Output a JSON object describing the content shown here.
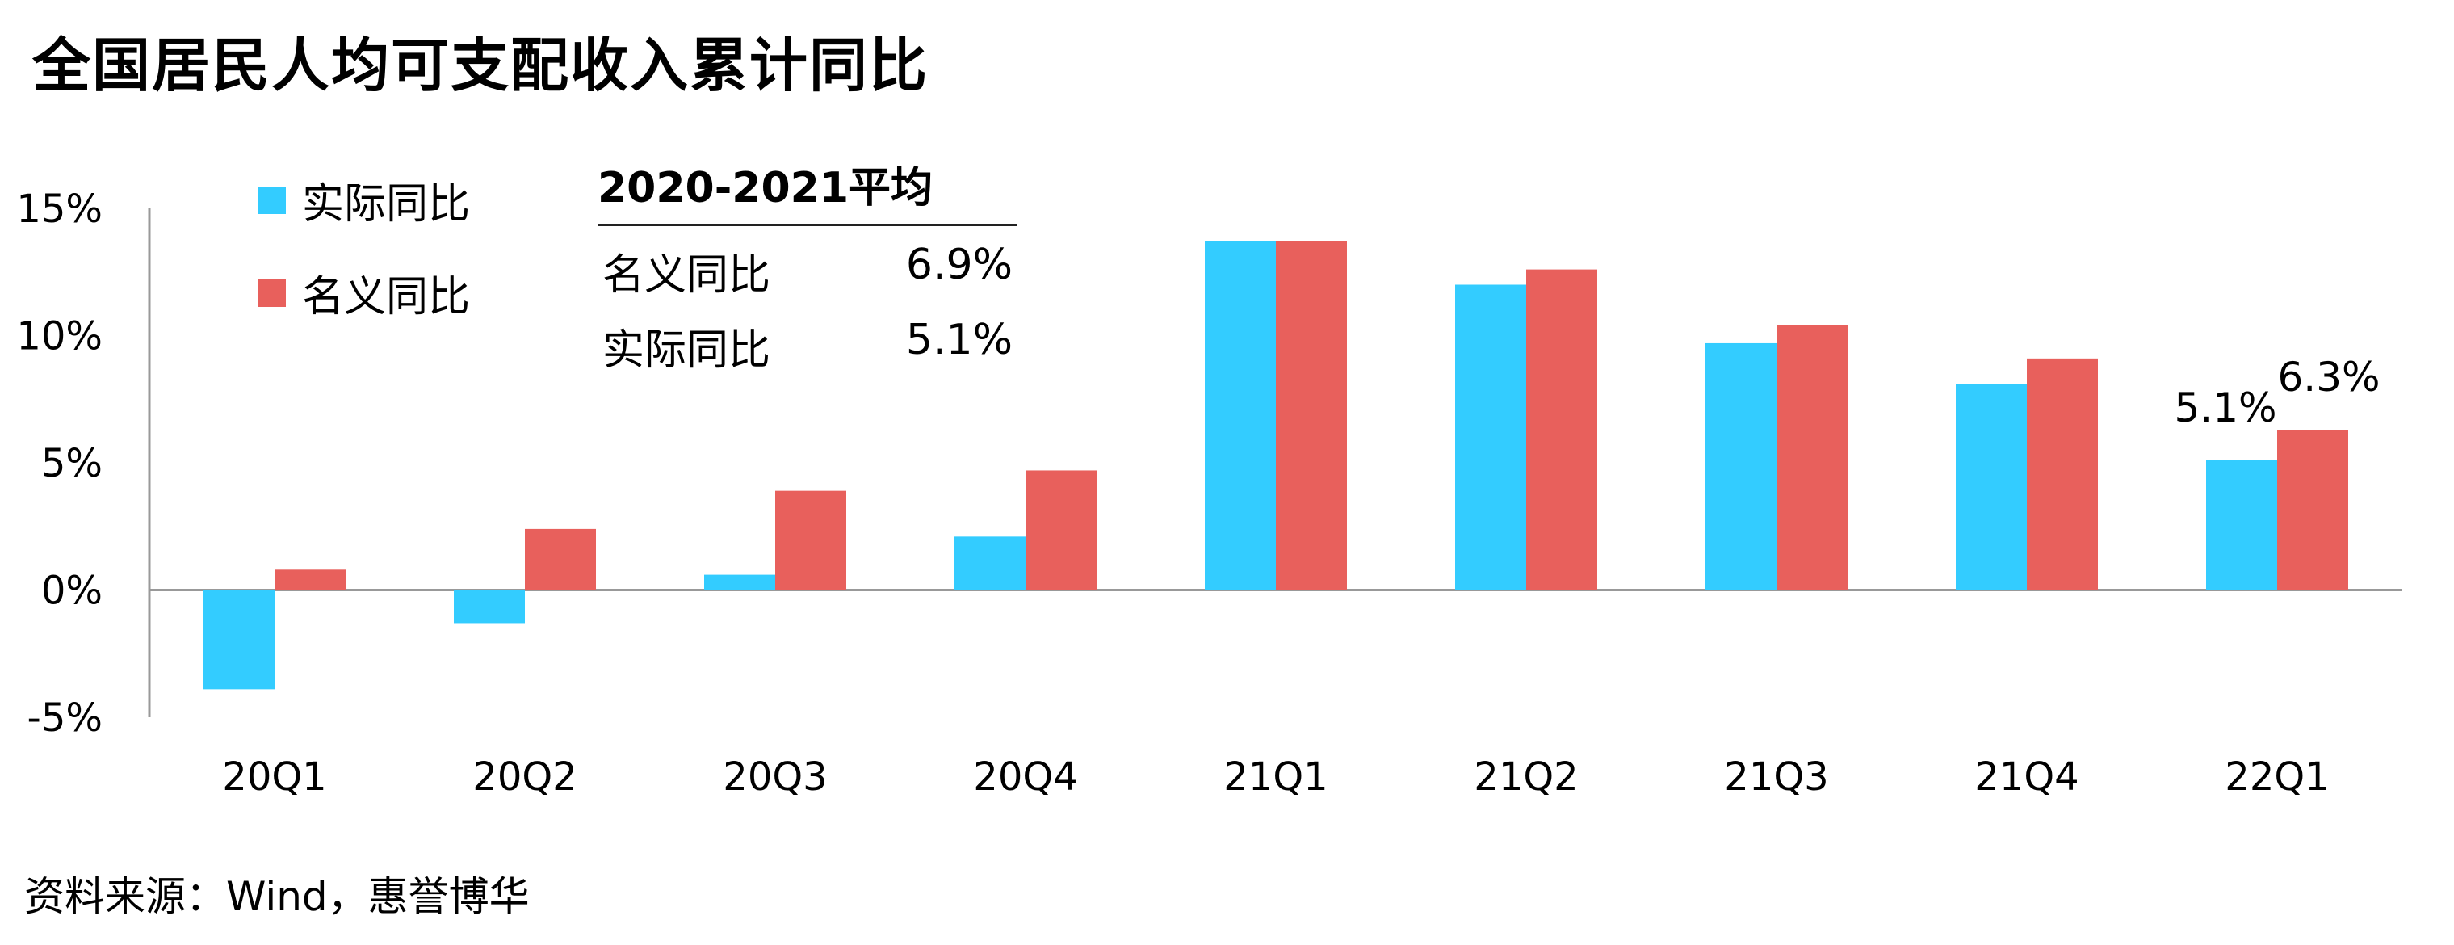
{
  "title": "全国居民人均可支配收入累计同比",
  "source": "资料来源：Wind，惠誉博华",
  "colors": {
    "real": "#33CCFF",
    "nominal": "#E8605C",
    "axis": "#999999"
  },
  "legend": {
    "real": "实际同比",
    "nominal": "名义同比"
  },
  "summary_table": {
    "title": "2020-2021平均",
    "rows": [
      {
        "label": "名义同比",
        "value": "6.9%"
      },
      {
        "label": "实际同比",
        "value": "5.1%"
      }
    ]
  },
  "chart_data": {
    "type": "bar",
    "categories": [
      "20Q1",
      "20Q2",
      "20Q3",
      "20Q4",
      "21Q1",
      "21Q2",
      "21Q3",
      "21Q4",
      "22Q1"
    ],
    "series": [
      {
        "name": "实际同比",
        "values": [
          -3.9,
          -1.3,
          0.6,
          2.1,
          13.7,
          12.0,
          9.7,
          8.1,
          5.1
        ]
      },
      {
        "name": "名义同比",
        "values": [
          0.8,
          2.4,
          3.9,
          4.7,
          13.7,
          12.6,
          10.4,
          9.1,
          6.3
        ]
      }
    ],
    "ylim": [
      -5,
      15
    ],
    "yticks": [
      "-5%",
      "0%",
      "5%",
      "10%",
      "15%"
    ],
    "annotations": [
      {
        "category": "22Q1",
        "series": "实际同比",
        "text": "5.1%"
      },
      {
        "category": "22Q1",
        "series": "名义同比",
        "text": "6.3%"
      }
    ],
    "legend_position": "top-left",
    "grid": false
  }
}
